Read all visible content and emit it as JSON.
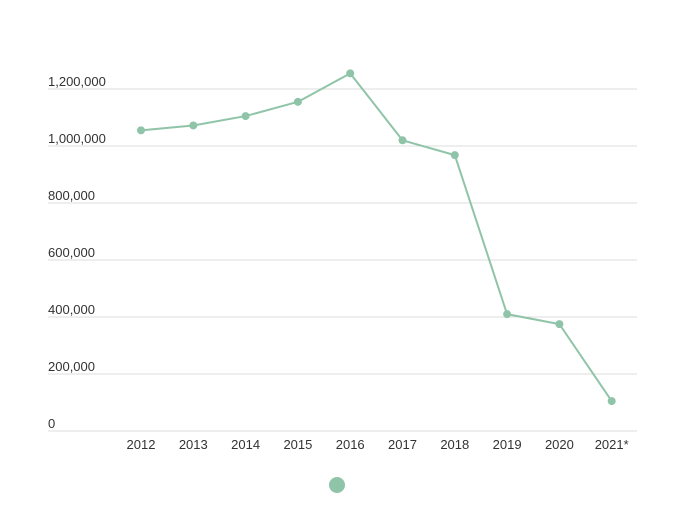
{
  "chart_data": {
    "type": "line",
    "categories": [
      "2012",
      "2013",
      "2014",
      "2015",
      "2016",
      "2017",
      "2018",
      "2019",
      "2020",
      "2021*"
    ],
    "series": [
      {
        "values": [
          1055000,
          1072000,
          1105000,
          1155000,
          1255000,
          1020000,
          968000,
          410000,
          375000,
          105000
        ]
      }
    ],
    "y_ticks": [
      0,
      200000,
      400000,
      600000,
      800000,
      1000000,
      1200000
    ],
    "y_tick_labels": [
      "0",
      "200,000",
      "400,000",
      "600,000",
      "800,000",
      "1,000,000",
      "1,200,000"
    ],
    "ylim": [
      0,
      1200000
    ],
    "grid": true,
    "legend": "bottom-center",
    "colors": {
      "series": "#8fc4a8",
      "grid": "#dddddd",
      "text": "#333333"
    }
  }
}
